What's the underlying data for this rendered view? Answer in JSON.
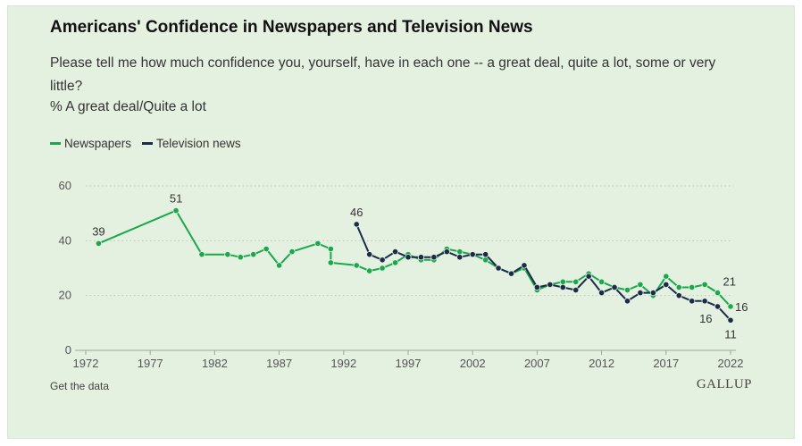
{
  "header": {
    "title": "Americans' Confidence in Newspapers and Television News",
    "question": "Please tell me how much confidence you, yourself, have in each one -- a great deal, quite a lot, some or very little?",
    "measure": "% A great deal/Quite a lot"
  },
  "footer": {
    "data_link": "Get the data",
    "brand": "GALLUP"
  },
  "colors": {
    "newspapers": "#1aa84b",
    "television": "#1c2b4a",
    "grid": "#b9c8b9",
    "axis": "#9aa89a",
    "text": "#333333"
  },
  "chart_data": {
    "type": "line",
    "ylim": [
      0,
      60
    ],
    "xlim": [
      1972,
      2022
    ],
    "y_ticks": [
      0,
      20,
      40,
      60
    ],
    "x_ticks": [
      1972,
      1977,
      1982,
      1987,
      1992,
      1997,
      2002,
      2007,
      2012,
      2017,
      2022
    ],
    "legend_position": "top-left",
    "grid": true,
    "series": [
      {
        "name": "Newspapers",
        "key": "newspapers",
        "points": [
          [
            1973,
            39
          ],
          [
            1979,
            51
          ],
          [
            1981,
            35
          ],
          [
            1983,
            35
          ],
          [
            1984,
            34
          ],
          [
            1985,
            35
          ],
          [
            1986,
            37
          ],
          [
            1987,
            31
          ],
          [
            1988,
            36
          ],
          [
            1990,
            39
          ],
          [
            1991,
            37
          ],
          [
            1991,
            32
          ],
          [
            1993,
            31
          ],
          [
            1994,
            29
          ],
          [
            1995,
            30
          ],
          [
            1996,
            32
          ],
          [
            1997,
            35
          ],
          [
            1998,
            33
          ],
          [
            1999,
            33
          ],
          [
            2000,
            37
          ],
          [
            2001,
            36
          ],
          [
            2002,
            35
          ],
          [
            2003,
            33
          ],
          [
            2004,
            30
          ],
          [
            2005,
            28
          ],
          [
            2006,
            30
          ],
          [
            2007,
            22
          ],
          [
            2008,
            24
          ],
          [
            2009,
            25
          ],
          [
            2010,
            25
          ],
          [
            2011,
            28
          ],
          [
            2012,
            25
          ],
          [
            2013,
            23
          ],
          [
            2014,
            22
          ],
          [
            2015,
            24
          ],
          [
            2016,
            20
          ],
          [
            2017,
            27
          ],
          [
            2018,
            23
          ],
          [
            2019,
            23
          ],
          [
            2020,
            24
          ],
          [
            2021,
            21
          ],
          [
            2022,
            16
          ]
        ]
      },
      {
        "name": "Television news",
        "key": "television",
        "points": [
          [
            1993,
            46
          ],
          [
            1994,
            35
          ],
          [
            1995,
            33
          ],
          [
            1996,
            36
          ],
          [
            1997,
            34
          ],
          [
            1998,
            34
          ],
          [
            1999,
            34
          ],
          [
            2000,
            36
          ],
          [
            2001,
            34
          ],
          [
            2002,
            35
          ],
          [
            2003,
            35
          ],
          [
            2004,
            30
          ],
          [
            2005,
            28
          ],
          [
            2006,
            31
          ],
          [
            2007,
            23
          ],
          [
            2008,
            24
          ],
          [
            2009,
            23
          ],
          [
            2010,
            22
          ],
          [
            2011,
            27
          ],
          [
            2012,
            21
          ],
          [
            2013,
            23
          ],
          [
            2014,
            18
          ],
          [
            2015,
            21
          ],
          [
            2016,
            21
          ],
          [
            2017,
            24
          ],
          [
            2018,
            20
          ],
          [
            2019,
            18
          ],
          [
            2020,
            18
          ],
          [
            2021,
            16
          ],
          [
            2022,
            11
          ]
        ]
      }
    ],
    "annotations": [
      {
        "text": "39",
        "series": "newspapers",
        "index": 0,
        "pos": "above"
      },
      {
        "text": "51",
        "series": "newspapers",
        "index": 1,
        "pos": "above"
      },
      {
        "text": "46",
        "series": "television",
        "index": 0,
        "pos": "above"
      },
      {
        "text": "21",
        "series": "newspapers",
        "index": 40,
        "pos": "above-right"
      },
      {
        "text": "16",
        "series": "newspapers",
        "index": 41,
        "pos": "right"
      },
      {
        "text": "16",
        "series": "television",
        "index": 28,
        "pos": "below-left"
      },
      {
        "text": "11",
        "series": "television",
        "index": 29,
        "pos": "below"
      }
    ]
  }
}
